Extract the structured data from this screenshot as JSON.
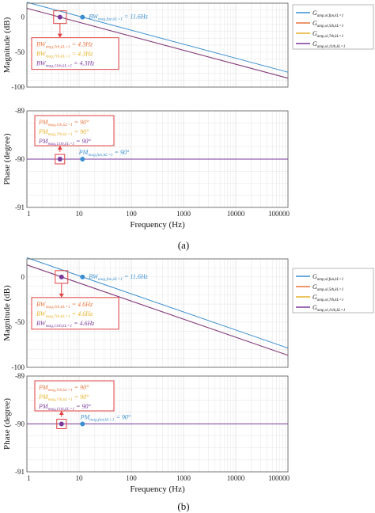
{
  "colors": {
    "fun": "#3A8FD0",
    "h5": "#E8743C",
    "h7": "#E6B22A",
    "h11": "#7A3A9C",
    "box": "#E04040",
    "grid": "#dddddd"
  },
  "chart_data": [
    {
      "id": "a",
      "caption": "(a)",
      "type": "line",
      "xscale": "log",
      "x_ticks": [
        "1",
        "10",
        "100",
        "1000",
        "10000",
        "100000"
      ],
      "xlabel": "Frequency (Hz)",
      "legend": {
        "placement": "right",
        "entries": [
          "G_{amp,ol,fun,kL=1}",
          "G_{amp,ol,5th,kL=1}",
          "G_{amp,ol,7th,kL=1}",
          "G_{amp,ol,11th,kL=1}"
        ]
      },
      "magnitude": {
        "ylabel": "Magnitude (dB)",
        "ylim": [
          -100,
          20
        ],
        "y_ticks": [
          "-100",
          "-50",
          "0"
        ],
        "series": [
          {
            "key": "fun",
            "x": [
              1,
              100000
            ],
            "y": [
              21.3,
              -78.7
            ]
          },
          {
            "key": "h5",
            "x": [
              1,
              100000
            ],
            "y": [
              12.7,
              -87.3
            ]
          },
          {
            "key": "h7",
            "x": [
              1,
              100000
            ],
            "y": [
              12.7,
              -87.3
            ]
          },
          {
            "key": "h11",
            "x": [
              1,
              100000
            ],
            "y": [
              12.7,
              -87.3
            ]
          }
        ],
        "markers": [
          {
            "key": "h11",
            "x": 4.3,
            "y": 0
          },
          {
            "key": "fun",
            "x": 11.6,
            "y": 0
          }
        ],
        "annotations": {
          "fun": "BW_{mag,fun,kL=1} = 11.6Hz",
          "box": [
            {
              "key": "h5",
              "text": "BW_{mag,5th,kL=1} = 4.3Hz"
            },
            {
              "key": "h7",
              "text": "BW_{mag,7th,kL=1} = 4.3Hz"
            },
            {
              "key": "h11",
              "text": "BW_{mag,11th,kL=1} = 4.3Hz"
            }
          ]
        }
      },
      "phase": {
        "ylabel": "Phase (degree)",
        "ylim": [
          -91,
          -89
        ],
        "y_ticks": [
          "-91",
          "-90",
          "-89"
        ],
        "series": [
          {
            "key": "fun",
            "x": [
              1,
              100000
            ],
            "y": [
              -90,
              -90
            ]
          },
          {
            "key": "h11",
            "x": [
              1,
              100000
            ],
            "y": [
              -90,
              -90
            ]
          }
        ],
        "markers": [
          {
            "key": "h11",
            "x": 4.3,
            "y": -90
          },
          {
            "key": "fun",
            "x": 11.6,
            "y": -90
          }
        ],
        "annotations": {
          "fun": "PM_{mag,fun,kL=1} = 90°",
          "box": [
            {
              "key": "h5",
              "text": "PM_{mag,5th,kL=1} = 90°"
            },
            {
              "key": "h7",
              "text": "PM_{mag,7th,kL=1} = 90°"
            },
            {
              "key": "h11",
              "text": "PM_{mag,11th,kL=1} = 90°"
            }
          ]
        }
      }
    },
    {
      "id": "b",
      "caption": "(b)",
      "type": "line",
      "xscale": "log",
      "x_ticks": [
        "1",
        "10",
        "100",
        "1000",
        "10000",
        "100000"
      ],
      "xlabel": "Frequency (Hz)",
      "legend": {
        "placement": "right",
        "entries": [
          "G_{amp,ol,fun,kL=1}",
          "G_{amp,ol,5th,kL=1}",
          "G_{amp,ol,7th,kL=1}",
          "G_{amp,ol,11th,kL=1}"
        ]
      },
      "magnitude": {
        "ylabel": "Magnitude (dB)",
        "ylim": [
          -100,
          20
        ],
        "y_ticks": [
          "-100",
          "-50",
          "0"
        ],
        "series": [
          {
            "key": "fun",
            "x": [
              1,
              100000
            ],
            "y": [
              21.3,
              -78.7
            ]
          },
          {
            "key": "h5",
            "x": [
              1,
              100000
            ],
            "y": [
              13.3,
              -86.7
            ]
          },
          {
            "key": "h7",
            "x": [
              1,
              100000
            ],
            "y": [
              13.3,
              -86.7
            ]
          },
          {
            "key": "h11",
            "x": [
              1,
              100000
            ],
            "y": [
              13.3,
              -86.7
            ]
          }
        ],
        "markers": [
          {
            "key": "h11",
            "x": 4.6,
            "y": 0
          },
          {
            "key": "fun",
            "x": 11.6,
            "y": 0
          }
        ],
        "annotations": {
          "fun": "BW_{mag,fun,kL=1} = 11.6Hz",
          "box": [
            {
              "key": "h5",
              "text": "BW_{mag,5th,kL=1} = 4.6Hz"
            },
            {
              "key": "h7",
              "text": "BW_{mag,7th,kL=1} = 4.6Hz"
            },
            {
              "key": "h11",
              "text": "BW_{mag,11th,kL=1} = 4.6Hz"
            }
          ]
        }
      },
      "phase": {
        "ylabel": "Phase (degree)",
        "ylim": [
          -91,
          -89
        ],
        "y_ticks": [
          "-91",
          "-90",
          "-89"
        ],
        "series": [
          {
            "key": "fun",
            "x": [
              1,
              100000
            ],
            "y": [
              -90,
              -90
            ]
          },
          {
            "key": "h11",
            "x": [
              1,
              100000
            ],
            "y": [
              -90,
              -90
            ]
          }
        ],
        "markers": [
          {
            "key": "h11",
            "x": 4.6,
            "y": -90
          },
          {
            "key": "fun",
            "x": 11.6,
            "y": -90
          }
        ],
        "annotations": {
          "fun": "PM_{mag,fun,kL=1} = 90°",
          "box": [
            {
              "key": "h5",
              "text": "PM_{mag,5th,kL=1} = 90°"
            },
            {
              "key": "h7",
              "text": "PM_{mag,7th,kL=1} = 90°"
            },
            {
              "key": "h11",
              "text": "PM_{mag,11th,kL=1} = 90°"
            }
          ]
        }
      }
    }
  ]
}
